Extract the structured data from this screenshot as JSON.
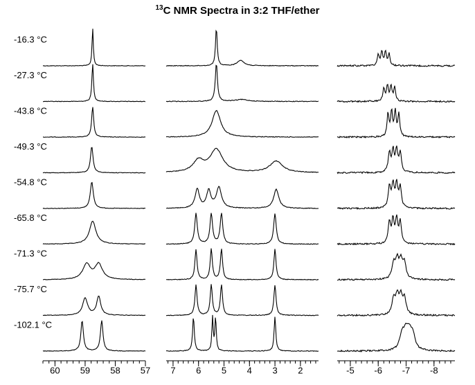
{
  "chart_data": {
    "type": "spectra",
    "title_superscript": "13",
    "title": "C NMR Spectra in 3:2 THF/ether",
    "temperatures": [
      "-16.3 °C",
      "-27.3 °C",
      "-43.8 °C",
      "-49.3 °C",
      "-54.8 °C",
      "-65.8 °C",
      "-71.3 °C",
      "-75.7 °C",
      "-102.1 °C"
    ],
    "panels": [
      {
        "xlim": [
          60.4,
          57.0
        ],
        "xticks": [
          60,
          59,
          58,
          57
        ],
        "minor_tick_step": 0.2,
        "spectra": [
          {
            "peaks": [
              58.75
            ],
            "widths": [
              0.025
            ],
            "heights": [
              1
            ]
          },
          {
            "peaks": [
              58.75
            ],
            "widths": [
              0.03
            ],
            "heights": [
              1
            ]
          },
          {
            "peaks": [
              58.75
            ],
            "widths": [
              0.04
            ],
            "heights": [
              0.8
            ]
          },
          {
            "peaks": [
              58.78
            ],
            "widths": [
              0.05
            ],
            "heights": [
              0.7
            ]
          },
          {
            "peaks": [
              58.78
            ],
            "widths": [
              0.06
            ],
            "heights": [
              0.7
            ]
          },
          {
            "peaks": [
              58.75
            ],
            "widths": [
              0.13
            ],
            "heights": [
              0.6
            ]
          },
          {
            "peaks": [
              58.95,
              58.55
            ],
            "widths": [
              0.15,
              0.15
            ],
            "heights": [
              0.4,
              0.4
            ]
          },
          {
            "peaks": [
              59.0,
              58.55
            ],
            "widths": [
              0.1,
              0.08
            ],
            "heights": [
              0.45,
              0.5
            ]
          },
          {
            "peaks": [
              59.1,
              58.45
            ],
            "widths": [
              0.05,
              0.05
            ],
            "heights": [
              0.8,
              0.8
            ]
          }
        ]
      },
      {
        "xlim": [
          7.27,
          1.29
        ],
        "xticks": [
          7,
          6,
          5,
          4,
          3,
          2
        ],
        "minor_tick_step": 0.2,
        "spectra": [
          {
            "peaks": [
              5.3,
              4.35
            ],
            "widths": [
              0.04,
              0.15
            ],
            "heights": [
              1,
              0.15
            ]
          },
          {
            "peaks": [
              5.3,
              4.3
            ],
            "widths": [
              0.05,
              0.3
            ],
            "heights": [
              1,
              0.05
            ]
          },
          {
            "peaks": [
              5.3
            ],
            "widths": [
              0.2
            ],
            "heights": [
              0.7
            ]
          },
          {
            "peaks": [
              6.0,
              5.3,
              2.95
            ],
            "widths": [
              0.25,
              0.3,
              0.3
            ],
            "heights": [
              0.3,
              0.6,
              0.3
            ]
          },
          {
            "peaks": [
              6.05,
              5.6,
              5.2,
              2.95
            ],
            "widths": [
              0.1,
              0.1,
              0.12,
              0.12
            ],
            "heights": [
              0.5,
              0.45,
              0.55,
              0.5
            ]
          },
          {
            "peaks": [
              6.1,
              5.5,
              5.1,
              3.0
            ],
            "widths": [
              0.06,
              0.06,
              0.06,
              0.06
            ],
            "heights": [
              0.8,
              0.8,
              0.8,
              0.8
            ]
          },
          {
            "peaks": [
              6.1,
              5.5,
              5.1,
              3.0
            ],
            "widths": [
              0.05,
              0.05,
              0.05,
              0.05
            ],
            "heights": [
              0.8,
              0.8,
              0.8,
              0.8
            ]
          },
          {
            "peaks": [
              6.1,
              5.5,
              5.1,
              3.0
            ],
            "widths": [
              0.05,
              0.05,
              0.05,
              0.05
            ],
            "heights": [
              0.8,
              0.8,
              0.8,
              0.8
            ]
          },
          {
            "peaks": [
              6.2,
              5.45,
              5.33,
              3.0
            ],
            "widths": [
              0.04,
              0.03,
              0.03,
              0.04
            ],
            "heights": [
              0.9,
              0.9,
              0.9,
              0.9
            ]
          }
        ]
      },
      {
        "xlim": [
          -4.53,
          -8.75
        ],
        "xticks": [
          -5,
          -6,
          -7,
          -8
        ],
        "minor_tick_step": 0.2,
        "spectra": [
          {
            "peaks": [
              -6.0,
              -6.13,
              -6.26,
              -6.39
            ],
            "widths": [
              0.04,
              0.04,
              0.04,
              0.04
            ],
            "heights": [
              0.3,
              0.35,
              0.35,
              0.3
            ]
          },
          {
            "peaks": [
              -6.2,
              -6.33,
              -6.46,
              -6.59
            ],
            "widths": [
              0.04,
              0.04,
              0.04,
              0.04
            ],
            "heights": [
              0.35,
              0.4,
              0.4,
              0.35
            ]
          },
          {
            "peaks": [
              -6.35,
              -6.48,
              -6.61,
              -6.74
            ],
            "widths": [
              0.04,
              0.04,
              0.04,
              0.04
            ],
            "heights": [
              0.6,
              0.65,
              0.65,
              0.6
            ]
          },
          {
            "peaks": [
              -6.4,
              -6.53,
              -6.66,
              -6.79
            ],
            "widths": [
              0.05,
              0.05,
              0.05,
              0.05
            ],
            "heights": [
              0.5,
              0.55,
              0.55,
              0.5
            ]
          },
          {
            "peaks": [
              -6.4,
              -6.53,
              -6.66,
              -6.79
            ],
            "widths": [
              0.05,
              0.05,
              0.05,
              0.05
            ],
            "heights": [
              0.55,
              0.6,
              0.6,
              0.55
            ]
          },
          {
            "peaks": [
              -6.4,
              -6.53,
              -6.66,
              -6.79
            ],
            "widths": [
              0.05,
              0.05,
              0.05,
              0.05
            ],
            "heights": [
              0.55,
              0.6,
              0.6,
              0.55
            ]
          },
          {
            "peaks": [
              -6.55,
              -6.68,
              -6.81,
              -6.94
            ],
            "widths": [
              0.07,
              0.07,
              0.07,
              0.07
            ],
            "heights": [
              0.4,
              0.45,
              0.45,
              0.4
            ]
          },
          {
            "peaks": [
              -6.55,
              -6.68,
              -6.81,
              -6.94
            ],
            "widths": [
              0.07,
              0.07,
              0.07,
              0.07
            ],
            "heights": [
              0.4,
              0.45,
              0.45,
              0.4
            ]
          },
          {
            "peaks": [
              -6.85,
              -6.98,
              -7.11,
              -7.24
            ],
            "widths": [
              0.1,
              0.1,
              0.1,
              0.1
            ],
            "heights": [
              0.35,
              0.4,
              0.4,
              0.35
            ]
          }
        ]
      }
    ]
  }
}
